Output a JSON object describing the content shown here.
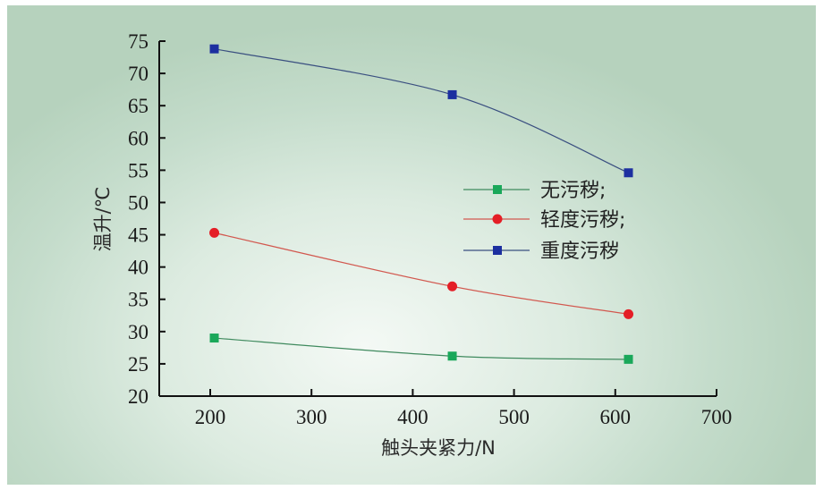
{
  "chart_data": {
    "type": "line",
    "title": "",
    "xlabel": "触头夹紧力/N",
    "ylabel": "温升/℃",
    "xlim": [
      150,
      700
    ],
    "ylim": [
      20,
      75
    ],
    "x_ticks": [
      200,
      300,
      400,
      500,
      600,
      700
    ],
    "y_ticks": [
      20,
      25,
      30,
      35,
      40,
      45,
      50,
      55,
      60,
      65,
      70,
      75
    ],
    "grid": false,
    "legend_position": "center-right",
    "x": [
      204,
      439,
      613
    ],
    "series": [
      {
        "name": "无污秽;",
        "marker": "square",
        "color": "#1aa85a",
        "values": [
          29.0,
          26.2,
          25.7
        ]
      },
      {
        "name": "轻度污秽;",
        "marker": "circle",
        "color": "#e41e26",
        "values": [
          45.3,
          37.0,
          32.7
        ]
      },
      {
        "name": "重度污秽",
        "marker": "square",
        "color": "#1c2fa0",
        "values": [
          73.8,
          66.7,
          54.6
        ]
      }
    ]
  }
}
